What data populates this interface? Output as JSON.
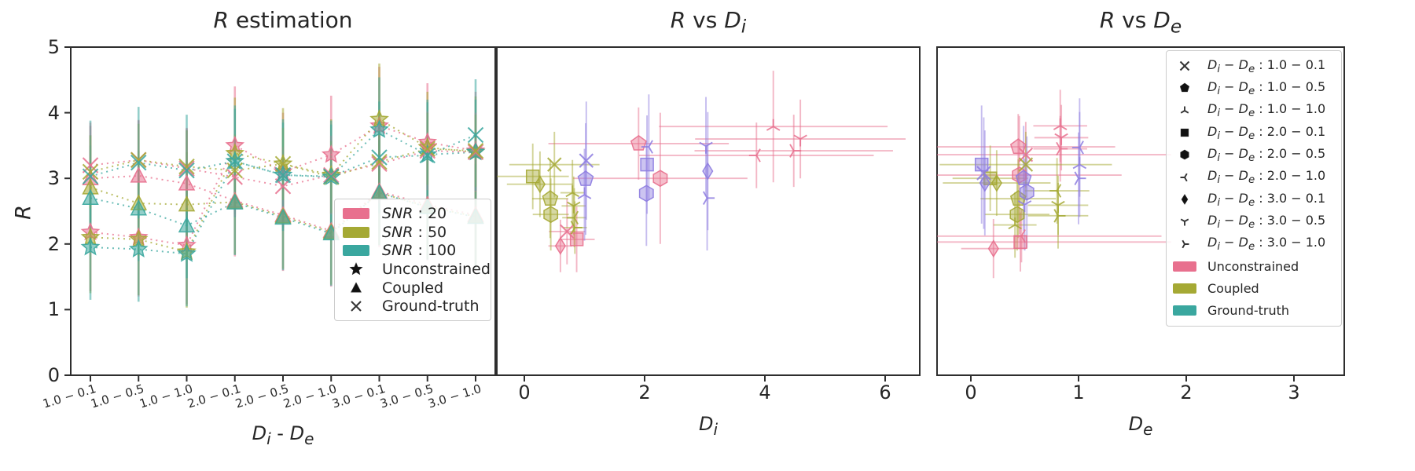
{
  "colors": {
    "pink": "#e8708e",
    "olive": "#a5a934",
    "teal": "#3aa79f",
    "purple": "#8d7ce0",
    "text": "#262626",
    "spine": "#2e2e2e"
  },
  "ylabel_html": "<i>R</i>",
  "legend1": {
    "patches": [
      {
        "label_prefix": "SNR",
        "label_value": "20",
        "color": "pink"
      },
      {
        "label_prefix": "SNR",
        "label_value": "50",
        "color": "olive"
      },
      {
        "label_prefix": "SNR",
        "label_value": "100",
        "color": "teal"
      }
    ],
    "markers": [
      {
        "label": "Unconstrained",
        "marker": "star"
      },
      {
        "label": "Coupled",
        "marker": "triangle"
      },
      {
        "label": "Ground-truth",
        "marker": "x"
      }
    ]
  },
  "legend3": {
    "prefix_html": "<i>D<sub>i</sub></i> − <i>D<sub>e</sub></i> : ",
    "marker_rows": [
      {
        "combo": "1.0 − 0.1",
        "marker": "x"
      },
      {
        "combo": "1.0 − 0.5",
        "marker": "pentagon"
      },
      {
        "combo": "1.0 − 1.0",
        "marker": "tri_down"
      },
      {
        "combo": "2.0 − 0.1",
        "marker": "square"
      },
      {
        "combo": "2.0 − 0.5",
        "marker": "hexagon"
      },
      {
        "combo": "2.0 − 1.0",
        "marker": "tri_left"
      },
      {
        "combo": "3.0 − 0.1",
        "marker": "diamond"
      },
      {
        "combo": "3.0 − 0.5",
        "marker": "tri_up"
      },
      {
        "combo": "3.0 − 1.0",
        "marker": "tri_right"
      }
    ],
    "patch_rows": [
      {
        "label": "Unconstrained",
        "color": "pink"
      },
      {
        "label": "Coupled",
        "color": "olive"
      },
      {
        "label": "Ground-truth",
        "color": "teal"
      }
    ]
  },
  "chart_data": [
    {
      "type": "line",
      "title": "R estimation",
      "title_html": "<i>R</i> estimation",
      "xlabel": "D_i - D_e",
      "xlabel_html": "<i>D<sub>i</sub></i> - <i>D<sub>e</sub></i>",
      "ylabel": "R",
      "ylim": [
        0,
        5
      ],
      "yticks": [
        0,
        1,
        2,
        3,
        4,
        5
      ],
      "categories": [
        "1.0 − 0.1",
        "1.0 − 0.5",
        "1.0 − 1.0",
        "2.0 − 0.1",
        "2.0 − 0.5",
        "2.0 − 1.0",
        "3.0 − 0.1",
        "3.0 − 0.5",
        "3.0 − 1.0"
      ],
      "legend_position": "lower right",
      "series": [
        {
          "name": "Unconstrained SNR 20",
          "method": "Unconstrained",
          "snr": "20",
          "color": "pink",
          "marker": "star",
          "values": [
            2.18,
            2.1,
            1.98,
            3.5,
            3.1,
            3.36,
            3.8,
            3.55,
            3.42
          ],
          "yerr": 0.9
        },
        {
          "name": "Unconstrained SNR 50",
          "method": "Unconstrained",
          "snr": "50",
          "color": "olive",
          "marker": "star",
          "values": [
            2.1,
            2.07,
            1.88,
            3.38,
            3.22,
            3.05,
            3.9,
            3.47,
            3.4
          ],
          "yerr": 0.85
        },
        {
          "name": "Unconstrained SNR 100",
          "method": "Unconstrained",
          "snr": "100",
          "color": "teal",
          "marker": "star",
          "values": [
            1.95,
            1.92,
            1.85,
            3.26,
            3.05,
            3.02,
            3.74,
            3.36,
            3.4
          ],
          "yerr": 0.8
        },
        {
          "name": "Coupled SNR 20",
          "method": "Coupled",
          "snr": "20",
          "color": "pink",
          "marker": "triangle",
          "values": [
            3.0,
            3.04,
            2.92,
            2.66,
            2.44,
            2.2,
            2.8,
            2.6,
            2.44
          ],
          "yerr": 0.85
        },
        {
          "name": "Coupled SNR 50",
          "method": "Coupled",
          "snr": "50",
          "color": "olive",
          "marker": "triangle",
          "values": [
            2.86,
            2.62,
            2.6,
            2.64,
            2.42,
            2.18,
            2.78,
            2.57,
            2.42
          ],
          "yerr": 0.8
        },
        {
          "name": "Coupled SNR 100",
          "method": "Coupled",
          "snr": "100",
          "color": "teal",
          "marker": "triangle",
          "values": [
            2.7,
            2.54,
            2.28,
            2.63,
            2.4,
            2.16,
            2.78,
            2.56,
            2.41
          ],
          "yerr": 0.8
        },
        {
          "name": "Ground-truth SNR 20",
          "method": "Ground-truth",
          "snr": "20",
          "color": "pink",
          "marker": "x",
          "values": [
            3.2,
            3.28,
            3.15,
            3.02,
            2.88,
            3.05,
            3.22,
            3.42,
            3.4
          ],
          "yerr": 0.6
        },
        {
          "name": "Ground-truth SNR 50",
          "method": "Ground-truth",
          "snr": "50",
          "color": "olive",
          "marker": "x",
          "values": [
            3.1,
            3.28,
            3.18,
            3.12,
            3.22,
            3.02,
            3.25,
            3.45,
            3.42
          ],
          "yerr": 0.55
        },
        {
          "name": "Ground-truth SNR 100",
          "method": "Ground-truth",
          "snr": "100",
          "color": "teal",
          "marker": "x",
          "values": [
            3.03,
            3.24,
            3.12,
            3.26,
            3.05,
            3.03,
            3.32,
            3.35,
            3.66
          ],
          "yerr": 0.85
        }
      ]
    },
    {
      "type": "scatter",
      "title": "R vs D_i",
      "title_html": "<i>R</i> vs <i>D<sub>i</sub></i>",
      "xlabel": "D_i",
      "xlabel_html": "<i>D<sub>i</sub></i>",
      "xlim": [
        -0.5,
        6.6
      ],
      "ylim": [
        0,
        5
      ],
      "xticks": [
        0,
        2,
        4,
        6
      ],
      "points": [
        {
          "group": "Unconstrained",
          "color": "pink",
          "marker": "diamond",
          "x": 0.6,
          "y": 1.97,
          "xerr": 0.2,
          "yerr": 0.4
        },
        {
          "group": "Unconstrained",
          "color": "pink",
          "marker": "x",
          "x": 0.71,
          "y": 2.19,
          "xerr": 0.3,
          "yerr": 0.5
        },
        {
          "group": "Unconstrained",
          "color": "pink",
          "marker": "square",
          "x": 0.87,
          "y": 2.07,
          "xerr": 0.3,
          "yerr": 0.5
        },
        {
          "group": "Unconstrained",
          "color": "pink",
          "marker": "pentagon",
          "x": 1.9,
          "y": 3.53,
          "xerr": 1.5,
          "yerr": 0.55
        },
        {
          "group": "Unconstrained",
          "color": "pink",
          "marker": "hexagon",
          "x": 2.26,
          "y": 3.0,
          "xerr": 1.45,
          "yerr": 1.0
        },
        {
          "group": "Unconstrained",
          "color": "pink",
          "marker": "tri_left",
          "x": 3.86,
          "y": 3.35,
          "xerr": 1.95,
          "yerr": 0.5
        },
        {
          "group": "Unconstrained",
          "color": "pink",
          "marker": "tri_down",
          "x": 4.14,
          "y": 3.79,
          "xerr": 1.9,
          "yerr": 0.85
        },
        {
          "group": "Unconstrained",
          "color": "pink",
          "marker": "tri_right",
          "x": 4.48,
          "y": 3.42,
          "xerr": 1.65,
          "yerr": 0.55
        },
        {
          "group": "Unconstrained",
          "color": "pink",
          "marker": "tri_up",
          "x": 4.59,
          "y": 3.6,
          "xerr": 1.75,
          "yerr": 0.6
        },
        {
          "group": "Coupled",
          "color": "olive",
          "marker": "square",
          "x": 0.14,
          "y": 3.03,
          "xerr": 0.6,
          "yerr": 0.5
        },
        {
          "group": "Coupled",
          "color": "olive",
          "marker": "diamond",
          "x": 0.26,
          "y": 2.91,
          "xerr": 0.55,
          "yerr": 0.5
        },
        {
          "group": "Coupled",
          "color": "olive",
          "marker": "pentagon",
          "x": 0.43,
          "y": 2.69,
          "xerr": 0.3,
          "yerr": 0.6
        },
        {
          "group": "Coupled",
          "color": "olive",
          "marker": "hexagon",
          "x": 0.44,
          "y": 2.45,
          "xerr": 0.3,
          "yerr": 0.55
        },
        {
          "group": "Coupled",
          "color": "olive",
          "marker": "x",
          "x": 0.5,
          "y": 3.21,
          "xerr": 0.75,
          "yerr": 0.5
        },
        {
          "group": "Coupled",
          "color": "olive",
          "marker": "tri_down",
          "x": 0.8,
          "y": 2.78,
          "xerr": 0.2,
          "yerr": 0.5
        },
        {
          "group": "Coupled",
          "color": "olive",
          "marker": "tri_up",
          "x": 0.82,
          "y": 2.58,
          "xerr": 0.2,
          "yerr": 0.45
        },
        {
          "group": "Coupled",
          "color": "olive",
          "marker": "tri_left",
          "x": 0.83,
          "y": 2.4,
          "xerr": 0.2,
          "yerr": 0.45
        },
        {
          "group": "Coupled",
          "color": "olive",
          "marker": "tri_right",
          "x": 0.84,
          "y": 2.25,
          "xerr": 0.2,
          "yerr": 0.4
        },
        {
          "group": "Ground-truth",
          "color": "purple",
          "marker": "x",
          "x": 1.03,
          "y": 3.27,
          "xerr": 0,
          "yerr": 0.9
        },
        {
          "group": "Ground-truth",
          "color": "purple",
          "marker": "pentagon",
          "x": 1.02,
          "y": 2.99,
          "xerr": 0,
          "yerr": 0.85
        },
        {
          "group": "Ground-truth",
          "color": "purple",
          "marker": "tri_down",
          "x": 1.0,
          "y": 2.75,
          "xerr": 0,
          "yerr": 0.7
        },
        {
          "group": "Ground-truth",
          "color": "purple",
          "marker": "tri_left",
          "x": 2.07,
          "y": 3.48,
          "xerr": 0,
          "yerr": 0.8
        },
        {
          "group": "Ground-truth",
          "color": "purple",
          "marker": "square",
          "x": 2.04,
          "y": 3.21,
          "xerr": 0,
          "yerr": 0.75
        },
        {
          "group": "Ground-truth",
          "color": "purple",
          "marker": "hexagon",
          "x": 2.03,
          "y": 2.77,
          "xerr": 0,
          "yerr": 0.8
        },
        {
          "group": "Ground-truth",
          "color": "purple",
          "marker": "tri_up",
          "x": 3.02,
          "y": 3.49,
          "xerr": 0,
          "yerr": 0.75
        },
        {
          "group": "Ground-truth",
          "color": "purple",
          "marker": "diamond",
          "x": 3.05,
          "y": 3.11,
          "xerr": 0,
          "yerr": 0.9
        },
        {
          "group": "Ground-truth",
          "color": "purple",
          "marker": "tri_right",
          "x": 3.04,
          "y": 2.7,
          "xerr": 0,
          "yerr": 0.8
        }
      ]
    },
    {
      "type": "scatter",
      "title": "R vs D_e",
      "title_html": "<i>R</i> vs <i>D<sub>e</sub></i>",
      "xlabel": "D_e",
      "xlabel_html": "<i>D<sub>e</sub></i>",
      "xlim": [
        -0.31,
        3.47
      ],
      "ylim": [
        0,
        5
      ],
      "xticks": [
        0,
        1,
        2,
        3
      ],
      "points": [
        {
          "group": "Unconstrained",
          "color": "pink",
          "marker": "diamond",
          "x": 0.21,
          "y": 1.93,
          "xerr": 0.3,
          "yerr": 0.45
        },
        {
          "group": "Unconstrained",
          "color": "pink",
          "marker": "pentagon",
          "x": 0.44,
          "y": 3.48,
          "xerr": 0.9,
          "yerr": 0.5
        },
        {
          "group": "Unconstrained",
          "color": "pink",
          "marker": "x",
          "x": 0.51,
          "y": 3.36,
          "xerr": 1.35,
          "yerr": 0.5
        },
        {
          "group": "Unconstrained",
          "color": "pink",
          "marker": "hexagon",
          "x": 0.45,
          "y": 3.05,
          "xerr": 0.95,
          "yerr": 0.9
        },
        {
          "group": "Unconstrained",
          "color": "pink",
          "marker": "tri_left",
          "x": 0.47,
          "y": 2.12,
          "xerr": 1.3,
          "yerr": 0.4
        },
        {
          "group": "Unconstrained",
          "color": "pink",
          "marker": "square",
          "x": 0.46,
          "y": 2.03,
          "xerr": 1.4,
          "yerr": 0.45
        },
        {
          "group": "Unconstrained",
          "color": "pink",
          "marker": "tri_down",
          "x": 0.83,
          "y": 3.8,
          "xerr": 0.25,
          "yerr": 0.55
        },
        {
          "group": "Unconstrained",
          "color": "pink",
          "marker": "tri_up",
          "x": 0.84,
          "y": 3.62,
          "xerr": 0.25,
          "yerr": 0.5
        },
        {
          "group": "Unconstrained",
          "color": "pink",
          "marker": "tri_right",
          "x": 0.83,
          "y": 3.45,
          "xerr": 0.25,
          "yerr": 0.5
        },
        {
          "group": "Coupled",
          "color": "olive",
          "marker": "square",
          "x": 0.18,
          "y": 3.0,
          "xerr": 0.35,
          "yerr": 0.5
        },
        {
          "group": "Coupled",
          "color": "olive",
          "marker": "diamond",
          "x": 0.24,
          "y": 2.93,
          "xerr": 0.5,
          "yerr": 0.5
        },
        {
          "group": "Coupled",
          "color": "olive",
          "marker": "x",
          "x": 0.51,
          "y": 3.21,
          "xerr": 0.8,
          "yerr": 0.5
        },
        {
          "group": "Coupled",
          "color": "olive",
          "marker": "pentagon",
          "x": 0.44,
          "y": 2.69,
          "xerr": 0.35,
          "yerr": 0.6
        },
        {
          "group": "Coupled",
          "color": "olive",
          "marker": "hexagon",
          "x": 0.43,
          "y": 2.45,
          "xerr": 0.3,
          "yerr": 0.55
        },
        {
          "group": "Coupled",
          "color": "olive",
          "marker": "tri_down",
          "x": 0.41,
          "y": 2.29,
          "xerr": 0.2,
          "yerr": 0.5
        },
        {
          "group": "Coupled",
          "color": "olive",
          "marker": "tri_left",
          "x": 0.8,
          "y": 2.81,
          "xerr": 0.3,
          "yerr": 0.5
        },
        {
          "group": "Coupled",
          "color": "olive",
          "marker": "tri_up",
          "x": 0.81,
          "y": 2.59,
          "xerr": 0.28,
          "yerr": 0.45
        },
        {
          "group": "Coupled",
          "color": "olive",
          "marker": "tri_right",
          "x": 0.81,
          "y": 2.43,
          "xerr": 0.28,
          "yerr": 0.5
        },
        {
          "group": "Ground-truth",
          "color": "purple",
          "marker": "square",
          "x": 0.1,
          "y": 3.21,
          "xerr": 0,
          "yerr": 0.9
        },
        {
          "group": "Ground-truth",
          "color": "purple",
          "marker": "x",
          "x": 0.12,
          "y": 3.08,
          "xerr": 0,
          "yerr": 0.85
        },
        {
          "group": "Ground-truth",
          "color": "purple",
          "marker": "diamond",
          "x": 0.13,
          "y": 2.93,
          "xerr": 0,
          "yerr": 0.8
        },
        {
          "group": "Ground-truth",
          "color": "purple",
          "marker": "pentagon",
          "x": 0.49,
          "y": 3.0,
          "xerr": 0,
          "yerr": 0.8
        },
        {
          "group": "Ground-truth",
          "color": "purple",
          "marker": "hexagon",
          "x": 0.52,
          "y": 2.79,
          "xerr": 0,
          "yerr": 0.85
        },
        {
          "group": "Ground-truth",
          "color": "purple",
          "marker": "tri_up",
          "x": 0.5,
          "y": 2.6,
          "xerr": 0,
          "yerr": 0.7
        },
        {
          "group": "Ground-truth",
          "color": "purple",
          "marker": "tri_left",
          "x": 1.01,
          "y": 3.47,
          "xerr": 0,
          "yerr": 0.75
        },
        {
          "group": "Ground-truth",
          "color": "purple",
          "marker": "tri_down",
          "x": 1.01,
          "y": 3.21,
          "xerr": 0,
          "yerr": 0.8
        },
        {
          "group": "Ground-truth",
          "color": "purple",
          "marker": "tri_right",
          "x": 1.0,
          "y": 3.0,
          "xerr": 0,
          "yerr": 0.7
        }
      ]
    }
  ]
}
